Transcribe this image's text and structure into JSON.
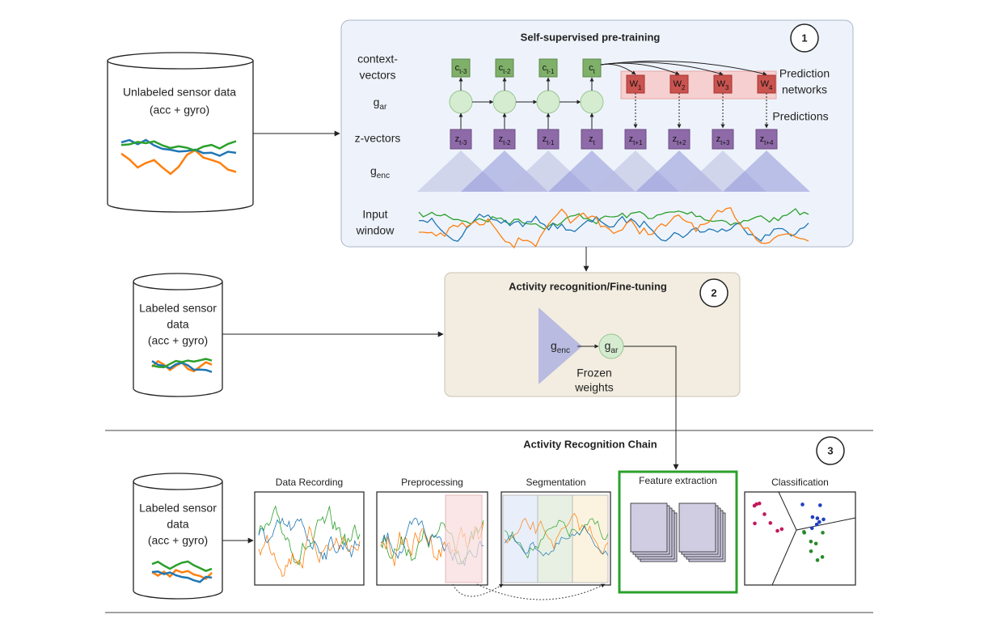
{
  "pretraining": {
    "title": "Self-supervised pre-training",
    "step": "1",
    "row_labels": {
      "context": [
        "context-",
        "vectors"
      ],
      "gar": {
        "base": "g",
        "sub": "ar"
      },
      "z": "z-vectors",
      "genc": {
        "base": "g",
        "sub": "enc"
      },
      "input": [
        "Input",
        "window"
      ]
    },
    "context_vectors": [
      {
        "base": "c",
        "sub": "t-3"
      },
      {
        "base": "c",
        "sub": "t-2"
      },
      {
        "base": "c",
        "sub": "t-1"
      },
      {
        "base": "c",
        "sub": "t"
      }
    ],
    "z_vectors": [
      {
        "base": "z",
        "sub": "t-3"
      },
      {
        "base": "z",
        "sub": "t-2"
      },
      {
        "base": "z",
        "sub": "t-1"
      },
      {
        "base": "z",
        "sub": "t"
      },
      {
        "base": "z",
        "sub": "t+1"
      },
      {
        "base": "z",
        "sub": "t+2"
      },
      {
        "base": "z",
        "sub": "t+3"
      },
      {
        "base": "z",
        "sub": "t+4"
      }
    ],
    "prediction_networks": [
      {
        "base": "W",
        "sub": "1"
      },
      {
        "base": "W",
        "sub": "2"
      },
      {
        "base": "W",
        "sub": "3"
      },
      {
        "base": "W",
        "sub": "4"
      }
    ],
    "prediction_networks_label": [
      "Prediction",
      "networks"
    ],
    "predictions_label": "Predictions"
  },
  "unlabeled_data": {
    "lines": [
      "Unlabeled sensor data",
      "(acc + gyro)"
    ]
  },
  "fine_tuning": {
    "title": "Activity recognition/Fine-tuning",
    "step": "2",
    "genc": {
      "base": "g",
      "sub": "enc"
    },
    "gar": {
      "base": "g",
      "sub": "ar"
    },
    "note": [
      "Frozen",
      "weights"
    ]
  },
  "labeled_data": {
    "lines": [
      "Labeled sensor",
      "data",
      "(acc + gyro)"
    ]
  },
  "chain": {
    "title": "Activity Recognition Chain",
    "step": "3",
    "data": {
      "lines": [
        "Labeled sensor",
        "data",
        "(acc + gyro)"
      ]
    },
    "stages": [
      "Data Recording",
      "Preprocessing",
      "Segmentation",
      "Feature extraction",
      "Classification"
    ]
  }
}
